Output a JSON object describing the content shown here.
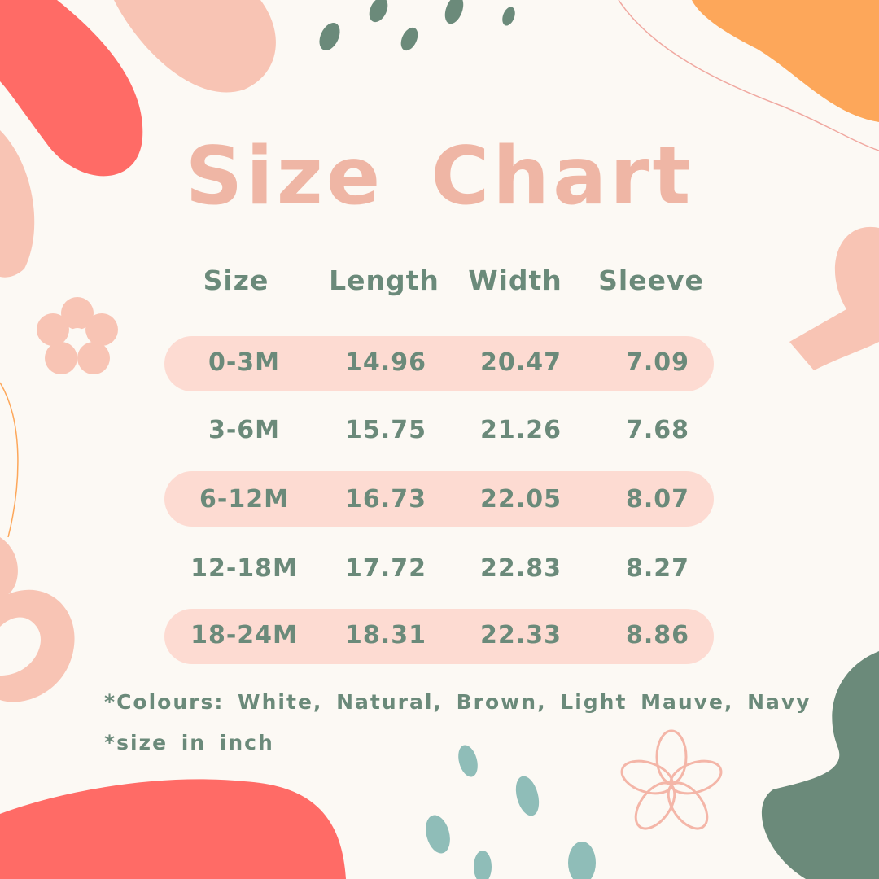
{
  "title": "Size Chart",
  "columns": [
    "Size",
    "Length",
    "Width",
    "Sleeve"
  ],
  "rows": [
    {
      "size": "0-3M",
      "length": "14.96",
      "width": "20.47",
      "sleeve": "7.09",
      "highlighted": true
    },
    {
      "size": "3-6M",
      "length": "15.75",
      "width": "21.26",
      "sleeve": "7.68",
      "highlighted": false
    },
    {
      "size": "6-12M",
      "length": "16.73",
      "width": "22.05",
      "sleeve": "8.07",
      "highlighted": true
    },
    {
      "size": "12-18M",
      "length": "17.72",
      "width": "22.83",
      "sleeve": "8.27",
      "highlighted": false
    },
    {
      "size": "18-24M",
      "length": "18.31",
      "width": "22.33",
      "sleeve": "8.86",
      "highlighted": true
    }
  ],
  "notes": {
    "colours": "*Colours: White, Natural, Brown, Light Mauve, Navy",
    "unit": "*size in inch"
  },
  "colors": {
    "background": "#fcf9f4",
    "title": "#efb6a5",
    "text": "#6b8a7a",
    "band": "#fddbd2",
    "coral": "#ff6b66",
    "peach": "#f8c4b4",
    "orange": "#fda75a",
    "green": "#6b8a7a",
    "teal": "#8fbdb8"
  }
}
